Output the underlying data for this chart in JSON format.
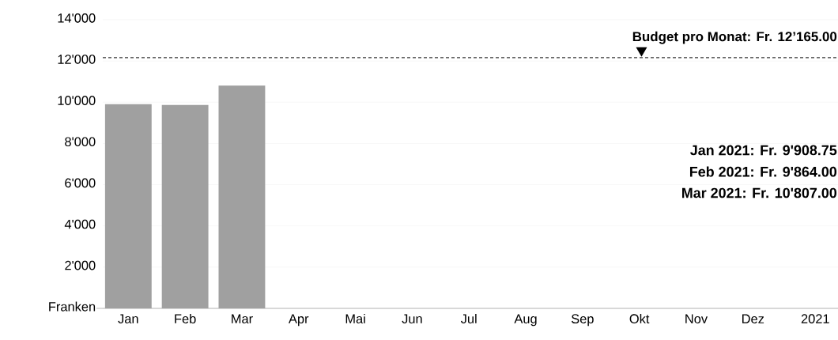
{
  "chart_data": {
    "type": "bar",
    "categories": [
      "Jan",
      "Feb",
      "Mar",
      "Apr",
      "Mai",
      "Jun",
      "Jul",
      "Aug",
      "Sep",
      "Okt",
      "Nov",
      "Dez"
    ],
    "values": [
      9908.75,
      9864,
      10807,
      null,
      null,
      null,
      null,
      null,
      null,
      null,
      null,
      null
    ],
    "color": "#a0a0a0",
    "xlabel": "2021",
    "ylim": [
      0,
      14000
    ],
    "yticks": [
      {
        "value": 0,
        "label": "Franken"
      },
      {
        "value": 2000,
        "label": "2'000"
      },
      {
        "value": 4000,
        "label": "4'000"
      },
      {
        "value": 6000,
        "label": "6'000"
      },
      {
        "value": 8000,
        "label": "8'000"
      },
      {
        "value": 10000,
        "label": "10'000"
      },
      {
        "value": 12000,
        "label": "12'000"
      },
      {
        "value": 14000,
        "label": "14'000"
      }
    ],
    "grid": "y",
    "ref_lines": [
      {
        "axis": "y",
        "value": 12165,
        "label": "Budget pro Monat: Fr. 12’165.00",
        "color": "#333333",
        "line_style": "dashed"
      }
    ],
    "annotations": [
      "Jan 2021:   Fr.     9'908.75",
      "Feb 2021:   Fr.     9'864.00",
      "Mar 2021:   Fr.   10'807.00"
    ]
  }
}
